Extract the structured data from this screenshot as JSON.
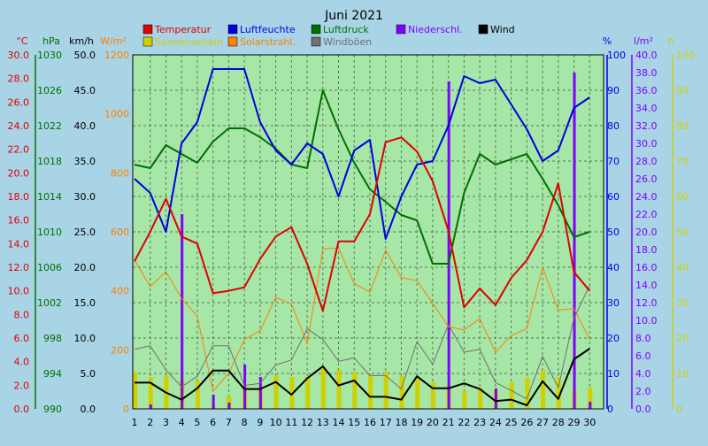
{
  "chart_data": {
    "type": "line",
    "title": "Juni 2021",
    "grid": true,
    "legend": [
      {
        "label": "Temperatur",
        "color": "#e00000"
      },
      {
        "label": "Luftfeuchte",
        "color": "#0000e0"
      },
      {
        "label": "Luftdruck",
        "color": "#007000"
      },
      {
        "label": "Niederschl.",
        "color": "#8000ff"
      },
      {
        "label": "Wind",
        "color": "#000000"
      },
      {
        "label": "Sonnenschein",
        "color": "#d0d000"
      },
      {
        "label": "Solarstrahl.",
        "color": "#ff8000"
      },
      {
        "label": "Windböen",
        "color": "#707070"
      }
    ],
    "axes": {
      "temperature": {
        "unit": "°C",
        "range": [
          0,
          30
        ],
        "color": "#e00000",
        "ticks": [
          "0.0",
          "2.0",
          "4.0",
          "6.0",
          "8.0",
          "10.0",
          "12.0",
          "14.0",
          "16.0",
          "18.0",
          "20.0",
          "22.0",
          "24.0",
          "26.0",
          "28.0",
          "30.0"
        ]
      },
      "pressure": {
        "unit": "hPa",
        "range": [
          990,
          1030
        ],
        "color": "#007000",
        "ticks": [
          "990",
          "994",
          "998",
          "1002",
          "1006",
          "1010",
          "1014",
          "1018",
          "1022",
          "1026",
          "1030"
        ]
      },
      "wind": {
        "unit": "km/h",
        "range": [
          0,
          50
        ],
        "color": "#000000",
        "ticks": [
          "0.0",
          "5.0",
          "10.0",
          "15.0",
          "20.0",
          "25.0",
          "30.0",
          "35.0",
          "40.0",
          "45.0",
          "50.0"
        ]
      },
      "solar": {
        "unit": "W/m²",
        "range": [
          0,
          1200
        ],
        "color": "#ff8000",
        "ticks": [
          "0",
          "200",
          "400",
          "600",
          "800",
          "1000",
          "1200"
        ]
      },
      "humidity": {
        "unit": "%",
        "range": [
          0,
          100
        ],
        "color": "#0000e0",
        "ticks": [
          "0",
          "10",
          "20",
          "30",
          "40",
          "50",
          "60",
          "70",
          "80",
          "90",
          "100"
        ]
      },
      "precipitation": {
        "unit": "l/m²",
        "range": [
          0,
          40
        ],
        "color": "#8000ff",
        "ticks": [
          "0.0",
          "2.0",
          "4.0",
          "6.0",
          "8.0",
          "10.0",
          "12.0",
          "14.0",
          "16.0",
          "18.0",
          "20.0",
          "22.0",
          "24.0",
          "26.0",
          "28.0",
          "30.0",
          "32.0",
          "34.0",
          "36.0",
          "38.0",
          "40.0"
        ]
      },
      "sunshine": {
        "unit": "h",
        "range": [
          0,
          100
        ],
        "color": "#d0d000",
        "ticks": [
          "0",
          "10",
          "20",
          "30",
          "40",
          "50",
          "60",
          "70",
          "80",
          "90",
          "100"
        ]
      }
    },
    "x": [
      1,
      2,
      3,
      4,
      5,
      6,
      7,
      8,
      9,
      10,
      11,
      12,
      13,
      14,
      15,
      16,
      17,
      18,
      19,
      20,
      21,
      22,
      23,
      24,
      25,
      26,
      27,
      28,
      29,
      30
    ],
    "series": [
      {
        "name": "Temperatur",
        "axis": "temperature",
        "color": "#e00000",
        "values": [
          12.5,
          15.0,
          17.8,
          14.6,
          14.0,
          9.8,
          10.0,
          10.3,
          12.7,
          14.6,
          15.4,
          12.3,
          8.3,
          14.2,
          14.2,
          16.5,
          22.6,
          23.0,
          21.8,
          19.3,
          15.1,
          8.6,
          10.2,
          8.8,
          11.1,
          12.6,
          15.0,
          19.1,
          11.6,
          10.0
        ]
      },
      {
        "name": "Luftfeuchte",
        "axis": "humidity",
        "color": "#0000e0",
        "values": [
          65,
          61,
          50,
          75,
          81,
          96,
          96,
          96,
          81,
          73,
          69,
          75,
          72,
          60,
          73,
          76,
          48,
          60,
          69,
          70,
          80,
          94,
          92,
          93,
          86,
          79,
          70,
          73,
          85,
          88
        ]
      },
      {
        "name": "Luftdruck",
        "axis": "pressure",
        "color": "#007000",
        "values": [
          1017.6,
          1017.2,
          1019.8,
          1018.8,
          1017.8,
          1020.2,
          1021.7,
          1021.7,
          1020.7,
          1019.4,
          1017.6,
          1017.2,
          1026.0,
          1021.6,
          1017.8,
          1014.8,
          1013.4,
          1011.9,
          1011.3,
          1006.4,
          1006.4,
          1014.4,
          1018.8,
          1017.6,
          1018.2,
          1018.8,
          1016.0,
          1013.0,
          1009.4,
          1010.0
        ]
      },
      {
        "name": "Wind",
        "axis": "wind",
        "color": "#000000",
        "values": [
          3.7,
          3.7,
          2.3,
          1.3,
          2.9,
          5.4,
          5.4,
          2.8,
          2.8,
          3.8,
          2.0,
          4.3,
          6.0,
          3.3,
          4.0,
          1.7,
          1.7,
          1.3,
          4.6,
          2.9,
          2.9,
          3.6,
          2.8,
          1.1,
          1.3,
          0.5,
          3.9,
          1.4,
          7.0,
          8.5
        ]
      },
      {
        "name": "Windböen",
        "axis": "wind",
        "color": "#707070",
        "values": [
          8.4,
          8.9,
          5.5,
          3.1,
          4.6,
          8.9,
          8.9,
          3.3,
          3.6,
          6.2,
          6.9,
          11.3,
          9.8,
          6.7,
          7.2,
          4.7,
          4.7,
          2.8,
          9.5,
          6.3,
          11.9,
          8.0,
          8.4,
          3.7,
          2.6,
          1.4,
          7.4,
          3.0,
          12.8,
          17.4
        ]
      },
      {
        "name": "Solarstrahl.",
        "axis": "solar",
        "color": "#ff8000",
        "values": [
          505,
          415,
          465,
          374,
          314,
          60,
          120,
          235,
          265,
          378,
          355,
          222,
          542,
          545,
          425,
          395,
          538,
          445,
          435,
          358,
          278,
          268,
          305,
          192,
          248,
          272,
          480,
          335,
          340,
          235
        ]
      },
      {
        "name": "Sonnenschein",
        "axis": "sunshine",
        "type": "bar",
        "color": "#d0d000",
        "values": [
          10.5,
          9.0,
          9.5,
          8.0,
          8.0,
          1.0,
          3.5,
          5.3,
          6.2,
          9.5,
          9.0,
          9.0,
          11.5,
          11.0,
          10.5,
          9.5,
          10.5,
          9.5,
          8.5,
          7.5,
          6.5,
          5.0,
          6.0,
          5.5,
          7.5,
          8.8,
          11.0,
          9.0,
          5.0,
          6.0
        ]
      },
      {
        "name": "Niederschl.",
        "axis": "precipitation",
        "type": "bar",
        "color": "#8000ff",
        "values": [
          0,
          0.5,
          0,
          22,
          0,
          1.6,
          0.7,
          5.0,
          3.6,
          0,
          0,
          0,
          0,
          0,
          0,
          0,
          0,
          0,
          0,
          0,
          37,
          0,
          0,
          2.3,
          0,
          0,
          0,
          0,
          38,
          0.8
        ]
      }
    ]
  }
}
